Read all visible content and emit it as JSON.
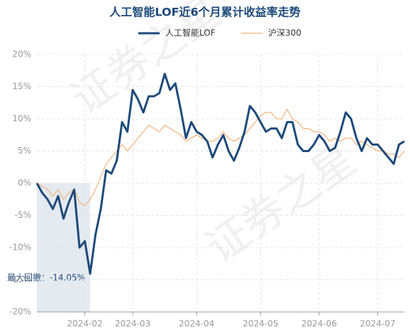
{
  "chart_data": {
    "type": "line",
    "title": "人工智能LOF近6个月累计收益率走势",
    "annotation": "最大回撤：-14.05%",
    "watermark": "证券之星",
    "categories": [
      null,
      null,
      null,
      null,
      null,
      null,
      null,
      null,
      null,
      "2024-02",
      null,
      null,
      null,
      null,
      null,
      null,
      null,
      null,
      "2024-03",
      null,
      null,
      null,
      null,
      null,
      null,
      null,
      null,
      null,
      null,
      null,
      "2024-04",
      null,
      null,
      null,
      null,
      null,
      null,
      null,
      null,
      null,
      null,
      null,
      "2024-05",
      null,
      null,
      null,
      null,
      null,
      null,
      null,
      null,
      null,
      null,
      "2024-06",
      null,
      null,
      null,
      null,
      null,
      null,
      null,
      null,
      null,
      null,
      "2024-07",
      null,
      null,
      null,
      null,
      null
    ],
    "series": [
      {
        "name": "人工智能LOF",
        "color": "#1d4a7a",
        "values": [
          0,
          -1.5,
          -2.5,
          -4,
          -2,
          -5.5,
          -3,
          -1,
          -10,
          -9,
          -14.05,
          -8,
          -4,
          2,
          1.5,
          3.5,
          9.5,
          8,
          14.5,
          13,
          11,
          13.5,
          13.5,
          14,
          17,
          14.5,
          15.5,
          11.5,
          7,
          9.5,
          8,
          7.5,
          6.5,
          4,
          6,
          7.5,
          5,
          3.5,
          5.5,
          8,
          12,
          11,
          9.5,
          8,
          8.5,
          8.5,
          7,
          9.5,
          9.5,
          6,
          5,
          5,
          6,
          7.5,
          6.5,
          5,
          5.5,
          8,
          11,
          10,
          7,
          5,
          7,
          6,
          6,
          5,
          4,
          3,
          6,
          6.5
        ]
      },
      {
        "name": "沪深300",
        "color": "#f2b27a",
        "values": [
          0,
          -0.5,
          -1,
          -2,
          -1,
          -2.5,
          -1.5,
          -1,
          -3,
          -3.5,
          -2.5,
          -1,
          1,
          3,
          4,
          5,
          6,
          5,
          6,
          7,
          8,
          9,
          8.5,
          8,
          9,
          8.5,
          8,
          7.5,
          6.5,
          7,
          7.5,
          7,
          6.5,
          6.5,
          7,
          8,
          7,
          6.5,
          7,
          7.5,
          8.5,
          9.5,
          10.5,
          11,
          11,
          10,
          10,
          11.5,
          10,
          9.5,
          8.5,
          8.5,
          8,
          8,
          7.5,
          6.5,
          7,
          6.5,
          7,
          7,
          6,
          6.5,
          6,
          5.5,
          5,
          5,
          4.5,
          4.5,
          4,
          5
        ]
      }
    ],
    "ylim": [
      -20,
      20
    ],
    "yticks": [
      {
        "value": -20,
        "label": "-20%"
      },
      {
        "value": -15,
        "label": "-15%"
      },
      {
        "value": -10,
        "label": "-10%"
      },
      {
        "value": -5,
        "label": "-5%"
      },
      {
        "value": 0,
        "label": "0%"
      },
      {
        "value": 5,
        "label": "5%"
      },
      {
        "value": 10,
        "label": "10%"
      },
      {
        "value": 15,
        "label": "15%"
      },
      {
        "value": 20,
        "label": "20%"
      }
    ],
    "grid": true,
    "legend": "top"
  }
}
